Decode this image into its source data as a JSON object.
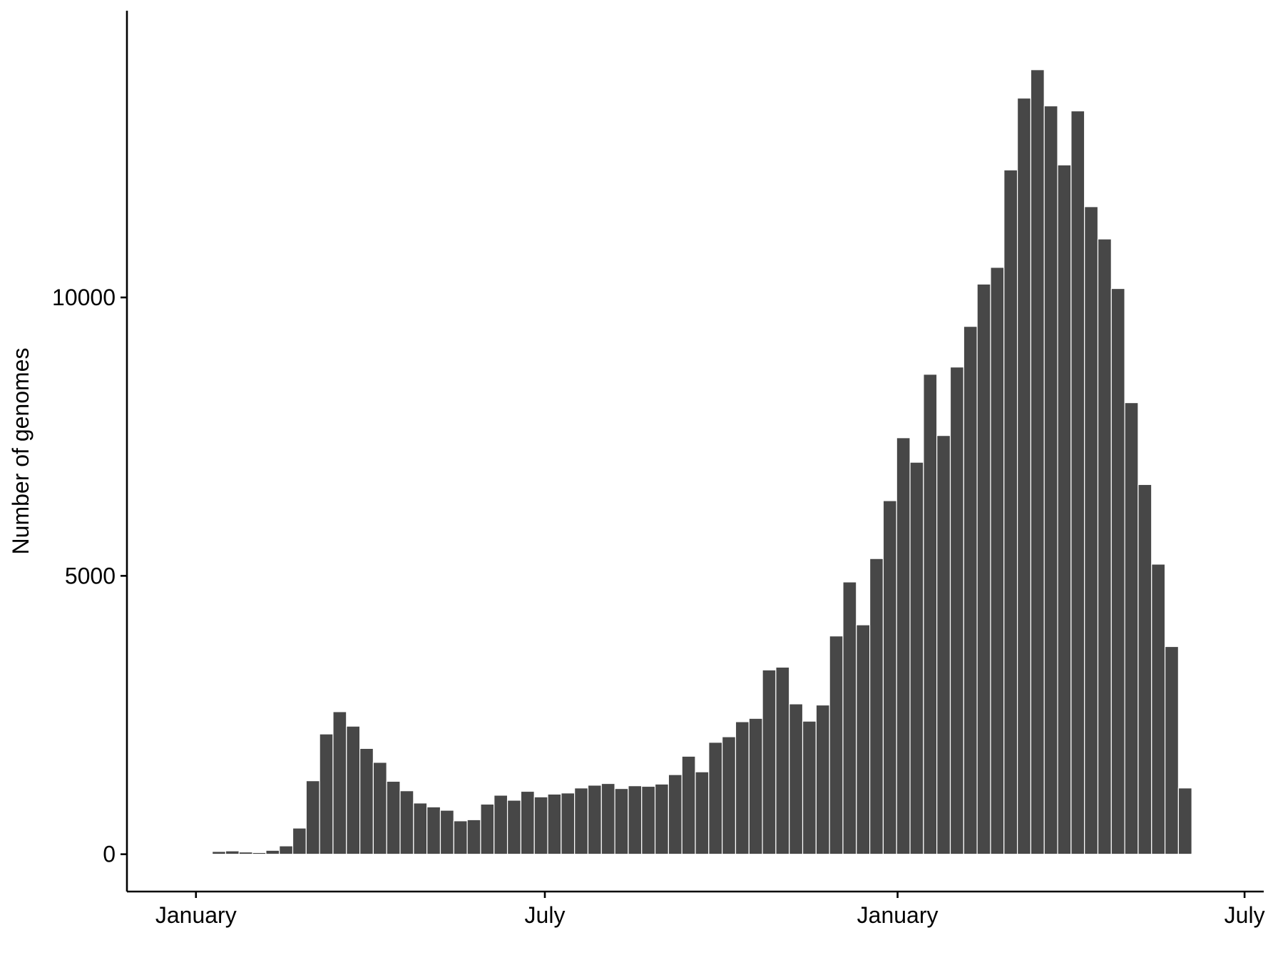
{
  "chart_data": {
    "type": "bar",
    "title": "",
    "xlabel": "",
    "ylabel": "Number of genomes",
    "bar_color": "#474747",
    "bar_edge_color": "#ffffff",
    "axis_color": "#000000",
    "grid": false,
    "x_unit": "week",
    "x_range": [
      "2019-11-26",
      "2021-07-11"
    ],
    "ylim": [
      -670,
      15150
    ],
    "y_ticks": [
      {
        "value": 0,
        "label": "0"
      },
      {
        "value": 5000,
        "label": "5000"
      },
      {
        "value": 10000,
        "label": "10000"
      }
    ],
    "x_ticks": [
      {
        "value": "2020-01-01",
        "label": "January"
      },
      {
        "value": "2020-07-01",
        "label": "July"
      },
      {
        "value": "2021-01-01",
        "label": "January"
      },
      {
        "value": "2021-07-01",
        "label": "July"
      }
    ],
    "x": [
      "2019-12-23",
      "2019-12-30",
      "2020-01-06",
      "2020-01-13",
      "2020-01-20",
      "2020-01-27",
      "2020-02-03",
      "2020-02-10",
      "2020-02-17",
      "2020-02-24",
      "2020-03-02",
      "2020-03-09",
      "2020-03-16",
      "2020-03-23",
      "2020-03-30",
      "2020-04-06",
      "2020-04-13",
      "2020-04-20",
      "2020-04-27",
      "2020-05-04",
      "2020-05-11",
      "2020-05-18",
      "2020-05-25",
      "2020-06-01",
      "2020-06-08",
      "2020-06-15",
      "2020-06-22",
      "2020-06-29",
      "2020-07-06",
      "2020-07-13",
      "2020-07-20",
      "2020-07-27",
      "2020-08-03",
      "2020-08-10",
      "2020-08-17",
      "2020-08-24",
      "2020-08-31",
      "2020-09-07",
      "2020-09-14",
      "2020-09-21",
      "2020-09-28",
      "2020-10-05",
      "2020-10-12",
      "2020-10-19",
      "2020-10-26",
      "2020-11-02",
      "2020-11-09",
      "2020-11-16",
      "2020-11-23",
      "2020-11-30",
      "2020-12-07",
      "2020-12-14",
      "2020-12-21",
      "2020-12-28",
      "2021-01-04",
      "2021-01-11",
      "2021-01-18",
      "2021-01-25",
      "2021-02-01",
      "2021-02-08",
      "2021-02-15",
      "2021-02-22",
      "2021-03-01",
      "2021-03-08",
      "2021-03-15",
      "2021-03-22",
      "2021-03-29",
      "2021-04-05",
      "2021-04-12",
      "2021-04-19",
      "2021-04-26",
      "2021-05-03",
      "2021-05-10",
      "2021-05-17",
      "2021-05-24",
      "2021-05-31",
      "2021-06-07",
      "2021-06-14"
    ],
    "values": [
      10,
      5,
      10,
      50,
      60,
      40,
      30,
      70,
      150,
      470,
      1320,
      2160,
      2560,
      2300,
      1900,
      1650,
      1310,
      1140,
      920,
      850,
      790,
      600,
      620,
      900,
      1060,
      970,
      1130,
      1030,
      1080,
      1100,
      1190,
      1240,
      1270,
      1180,
      1230,
      1220,
      1260,
      1430,
      1760,
      1480,
      2010,
      2110,
      2380,
      2440,
      3310,
      3360,
      2700,
      2390,
      2680,
      3920,
      4890,
      4120,
      5310,
      6350,
      7480,
      7040,
      8620,
      7520,
      8750,
      9480,
      10240,
      10540,
      12290,
      13580,
      14090,
      13440,
      12380,
      13350,
      11630,
      11050,
      10160,
      8110,
      6640,
      5210,
      3730,
      1190,
      10,
      5
    ]
  }
}
